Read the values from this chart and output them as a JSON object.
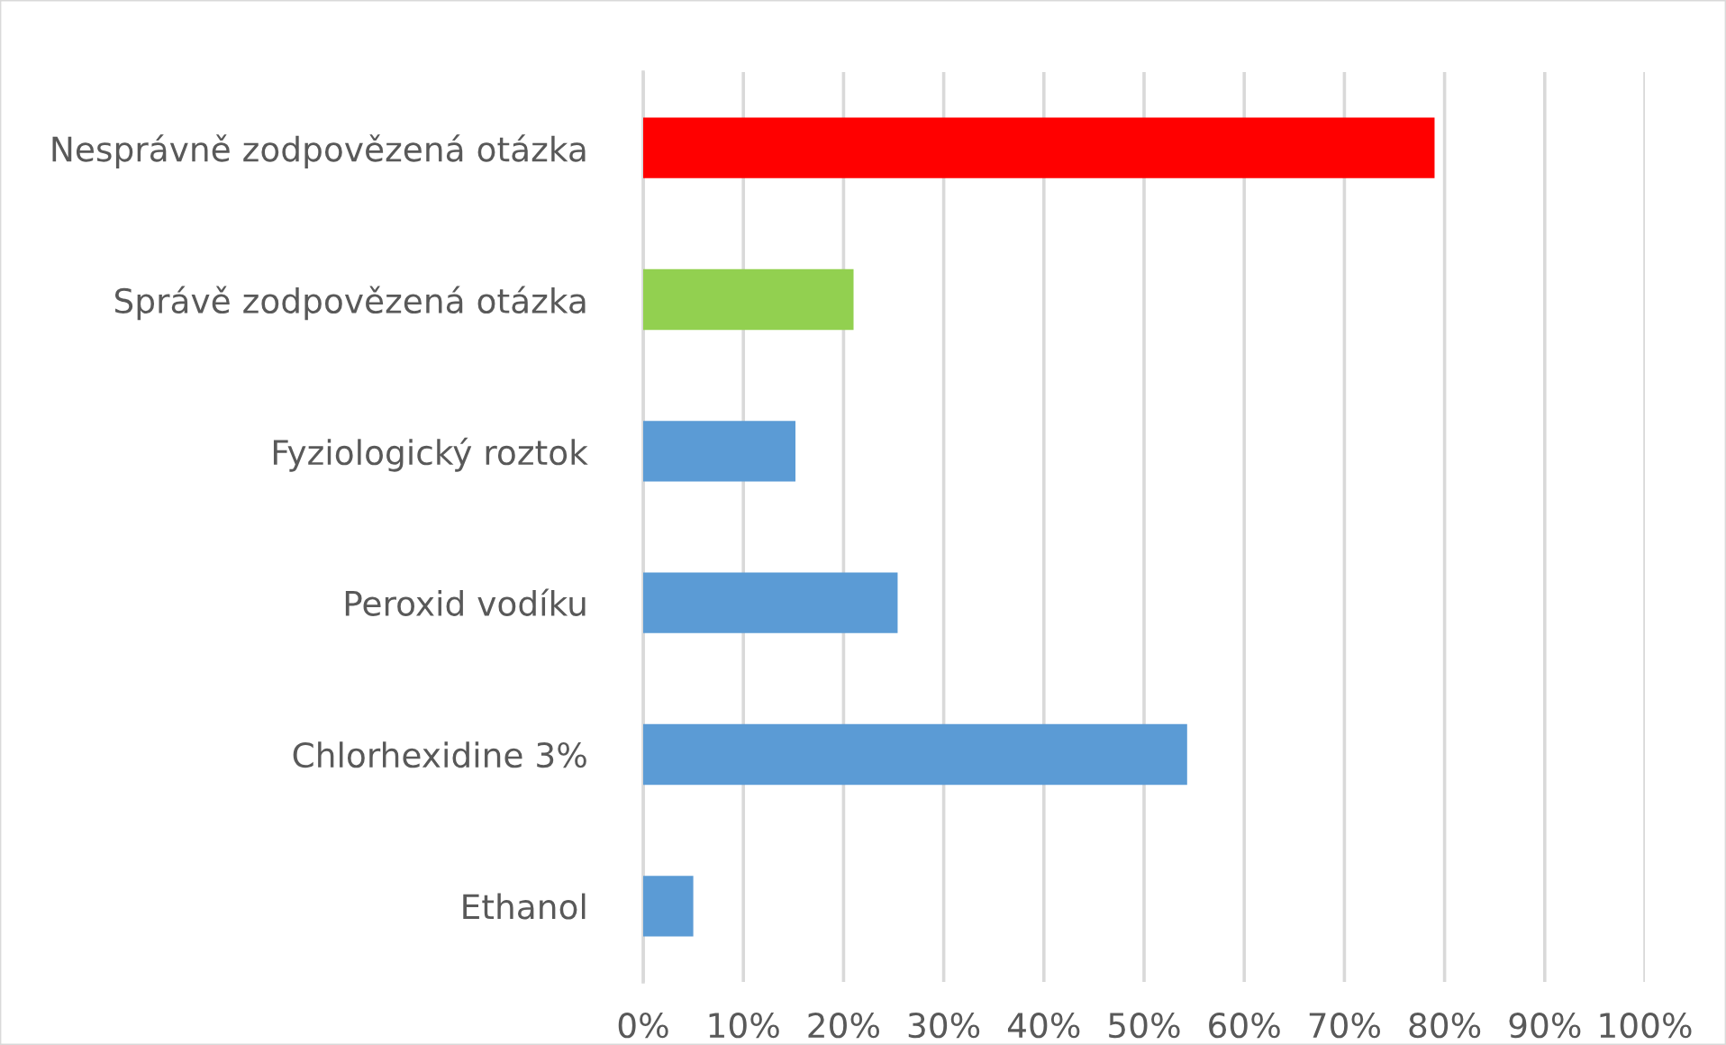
{
  "chart_data": {
    "type": "bar",
    "orientation": "horizontal",
    "categories": [
      "Nesprávně zodpovězená otázka",
      "Správě zodpovězená otázka",
      "Fyziologický roztok",
      "Peroxid vodíku",
      "Chlorhexidine 3%",
      "Ethanol"
    ],
    "values": [
      79,
      21,
      15.2,
      25.4,
      54.3,
      5
    ],
    "colors": [
      "#ff0000",
      "#92d050",
      "#5b9bd5",
      "#5b9bd5",
      "#5b9bd5",
      "#5b9bd5"
    ],
    "xlim": [
      0,
      100
    ],
    "xticks": [
      {
        "value": 0,
        "label": "0%"
      },
      {
        "value": 10,
        "label": "10%"
      },
      {
        "value": 20,
        "label": "20%"
      },
      {
        "value": 30,
        "label": "30%"
      },
      {
        "value": 40,
        "label": "40%"
      },
      {
        "value": 50,
        "label": "50%"
      },
      {
        "value": 60,
        "label": "60%"
      },
      {
        "value": 70,
        "label": "70%"
      },
      {
        "value": 80,
        "label": "80%"
      },
      {
        "value": 90,
        "label": "90%"
      },
      {
        "value": 100,
        "label": "100%"
      }
    ],
    "grid": "x"
  }
}
